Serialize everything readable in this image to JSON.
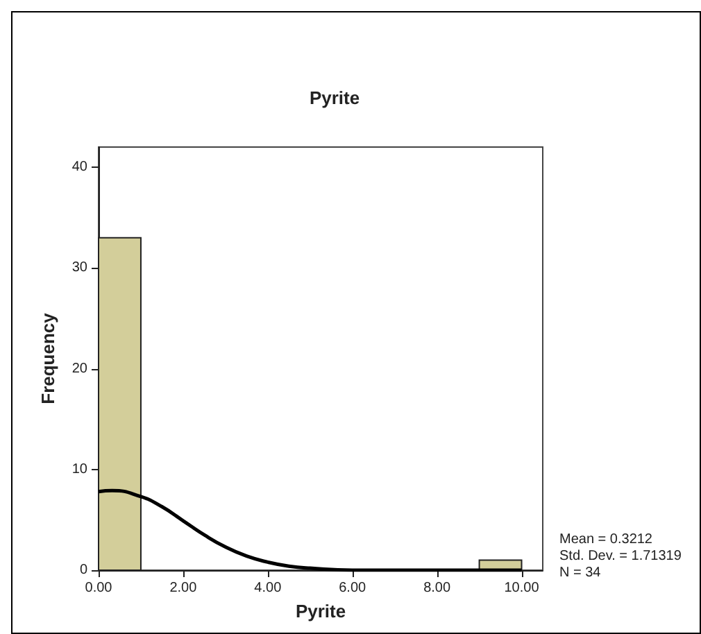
{
  "chart_data": {
    "type": "histogram",
    "title": "Pyrite",
    "xlabel": "Pyrite",
    "ylabel": "Frequency",
    "bins": [
      0,
      1,
      2,
      3,
      4,
      5,
      6,
      7,
      8,
      9,
      10
    ],
    "values": [
      33,
      0,
      0,
      0,
      0,
      0,
      0,
      0,
      0,
      1
    ],
    "color": "#d3ce9a",
    "series": [
      {
        "type": "line",
        "color": "#000000",
        "x": [
          0,
          0.3212,
          1,
          1.5,
          2,
          2.5,
          3,
          3.5,
          4,
          4.5,
          5,
          6,
          7,
          8,
          9,
          10
        ],
        "values": [
          7.8,
          7.9,
          7.3,
          6.3,
          4.9,
          3.5,
          2.3,
          1.4,
          0.8,
          0.4,
          0.2,
          0,
          0,
          0,
          0,
          0
        ]
      }
    ],
    "xlim": [
      0,
      10.5
    ],
    "xticks": [
      {
        "value": 0,
        "label": "0.00"
      },
      {
        "value": 2,
        "label": "2.00"
      },
      {
        "value": 4,
        "label": "4.00"
      },
      {
        "value": 6,
        "label": "6.00"
      },
      {
        "value": 8,
        "label": "8.00"
      },
      {
        "value": 10,
        "label": "10.00"
      }
    ],
    "ylim": [
      0,
      42
    ],
    "yticks": [
      0,
      10,
      20,
      30,
      40
    ],
    "annotations": [
      "Mean = 0.3212",
      "Std. Dev. = 1.71319",
      "N = 34"
    ]
  }
}
